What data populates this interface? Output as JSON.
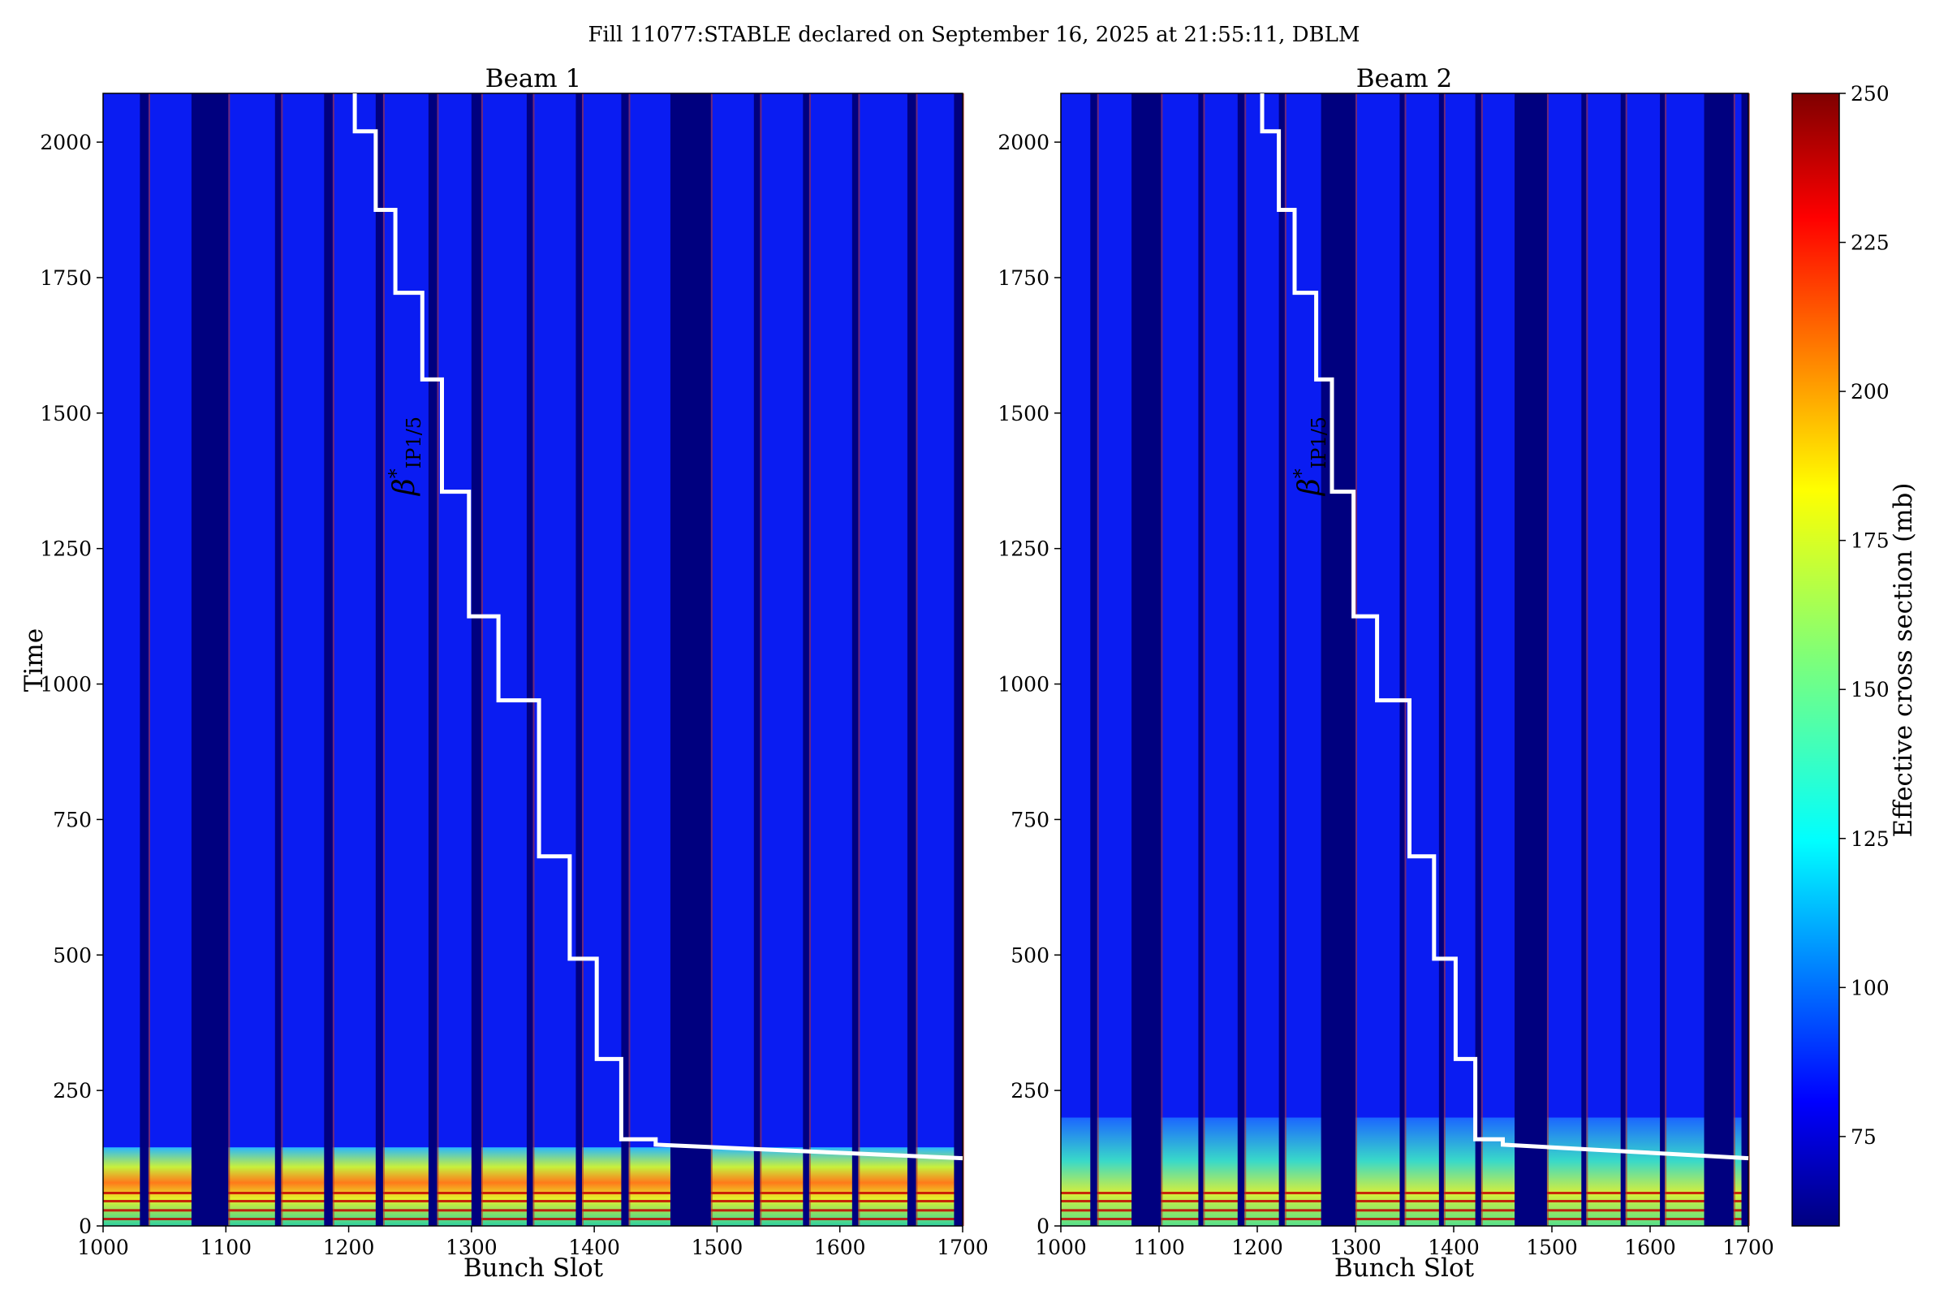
{
  "suptitle": "Fill 11077:STABLE declared on September 16, 2025 at 21:55:11, DBLM",
  "chart_data": [
    {
      "type": "heatmap",
      "title": "Beam 1",
      "xlabel": "Bunch Slot",
      "ylabel": "Time",
      "xlim": [
        1000,
        1700
      ],
      "ylim": [
        0,
        2090
      ],
      "xticks": [
        1000,
        1100,
        1200,
        1300,
        1400,
        1500,
        1600,
        1700
      ],
      "yticks": [
        0,
        250,
        500,
        750,
        1000,
        1250,
        1500,
        1750,
        2000
      ],
      "empty_bunch_gaps": [
        [
          1030,
          1037
        ],
        [
          1072,
          1102
        ],
        [
          1140,
          1145
        ],
        [
          1180,
          1187
        ],
        [
          1222,
          1228
        ],
        [
          1265,
          1272
        ],
        [
          1300,
          1308
        ],
        [
          1345,
          1350
        ],
        [
          1385,
          1390
        ],
        [
          1422,
          1428
        ],
        [
          1462,
          1495
        ],
        [
          1530,
          1535
        ],
        [
          1570,
          1575
        ],
        [
          1610,
          1615
        ],
        [
          1655,
          1662
        ],
        [
          1693,
          1700
        ]
      ],
      "beta_star_annotation": "β*IP1/5",
      "beta_star_line": [
        [
          1205,
          2090
        ],
        [
          1205,
          2020
        ],
        [
          1222,
          2020
        ],
        [
          1222,
          1875
        ],
        [
          1238,
          1875
        ],
        [
          1238,
          1722
        ],
        [
          1260,
          1722
        ],
        [
          1260,
          1562
        ],
        [
          1276,
          1562
        ],
        [
          1276,
          1355
        ],
        [
          1298,
          1355
        ],
        [
          1298,
          1125
        ],
        [
          1322,
          1125
        ],
        [
          1322,
          970
        ],
        [
          1355,
          970
        ],
        [
          1355,
          682
        ],
        [
          1380,
          682
        ],
        [
          1380,
          493
        ],
        [
          1402,
          493
        ],
        [
          1402,
          308
        ],
        [
          1422,
          308
        ],
        [
          1422,
          160
        ],
        [
          1450,
          160
        ],
        [
          1450,
          150
        ],
        [
          1700,
          125
        ]
      ],
      "high_value_rows": [
        0,
        145
      ]
    },
    {
      "type": "heatmap",
      "title": "Beam 2",
      "xlabel": "Bunch Slot",
      "ylabel": "",
      "xlim": [
        1000,
        1700
      ],
      "ylim": [
        0,
        2090
      ],
      "xticks": [
        1000,
        1100,
        1200,
        1300,
        1400,
        1500,
        1600,
        1700
      ],
      "yticks": [
        0,
        250,
        500,
        750,
        1000,
        1250,
        1500,
        1750,
        2000
      ],
      "empty_bunch_gaps": [
        [
          1030,
          1037
        ],
        [
          1072,
          1102
        ],
        [
          1140,
          1145
        ],
        [
          1180,
          1187
        ],
        [
          1222,
          1228
        ],
        [
          1265,
          1300
        ],
        [
          1345,
          1350
        ],
        [
          1385,
          1390
        ],
        [
          1422,
          1428
        ],
        [
          1462,
          1495
        ],
        [
          1530,
          1535
        ],
        [
          1570,
          1575
        ],
        [
          1610,
          1615
        ],
        [
          1655,
          1685
        ],
        [
          1693,
          1700
        ]
      ],
      "beta_star_annotation": "β*IP1/5",
      "beta_star_line": [
        [
          1205,
          2090
        ],
        [
          1205,
          2020
        ],
        [
          1222,
          2020
        ],
        [
          1222,
          1875
        ],
        [
          1238,
          1875
        ],
        [
          1238,
          1722
        ],
        [
          1260,
          1722
        ],
        [
          1260,
          1562
        ],
        [
          1276,
          1562
        ],
        [
          1276,
          1355
        ],
        [
          1298,
          1355
        ],
        [
          1298,
          1125
        ],
        [
          1322,
          1125
        ],
        [
          1322,
          970
        ],
        [
          1355,
          970
        ],
        [
          1355,
          682
        ],
        [
          1380,
          682
        ],
        [
          1380,
          493
        ],
        [
          1402,
          493
        ],
        [
          1402,
          308
        ],
        [
          1422,
          308
        ],
        [
          1422,
          160
        ],
        [
          1450,
          160
        ],
        [
          1450,
          150
        ],
        [
          1700,
          125
        ]
      ],
      "high_value_rows": [
        0,
        200
      ]
    }
  ],
  "colorbar": {
    "label": "Effective cross section (mb)",
    "range": [
      60,
      250
    ],
    "ticks": [
      75,
      100,
      125,
      150,
      175,
      200,
      225,
      250
    ],
    "colormap": "jet"
  },
  "colors": {
    "bunch_blue": "#0a1cf2",
    "empty_navy": "#00007f",
    "line_white": "#ffffff"
  }
}
